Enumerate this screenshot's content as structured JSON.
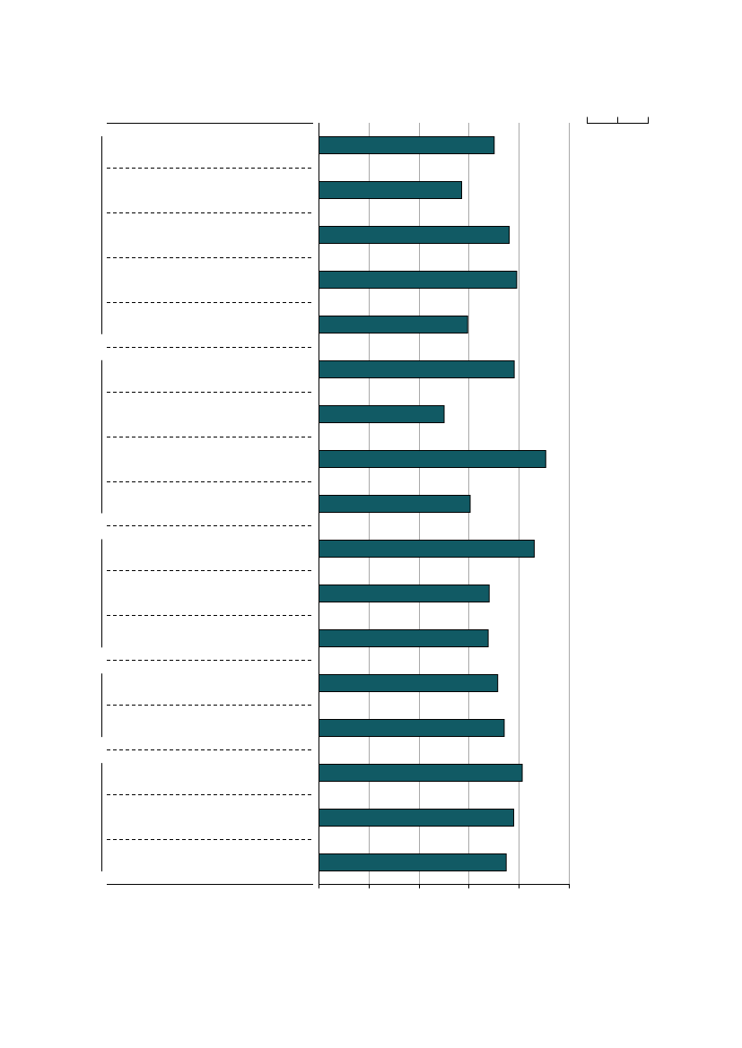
{
  "chart_data": {
    "type": "bar",
    "orientation": "horizontal",
    "title": "",
    "xlabel": "",
    "ylabel": "",
    "categories": [
      "",
      "",
      "",
      "",
      "",
      "",
      "",
      "",
      "",
      "",
      "",
      "",
      "",
      "",
      "",
      "",
      ""
    ],
    "values": [
      35,
      28.5,
      38,
      39.5,
      29.7,
      39,
      25,
      45.3,
      30.2,
      43,
      34,
      33.8,
      35.7,
      37,
      40.6,
      38.9,
      37.4
    ],
    "xlim": [
      0,
      50
    ],
    "x_tick_values": [
      0,
      10,
      20,
      30,
      40,
      50
    ],
    "grid": true,
    "legend": "none",
    "bar_color": "#115a64",
    "groups": [
      {
        "start": 0,
        "end": 4
      },
      {
        "start": 5,
        "end": 8
      },
      {
        "start": 9,
        "end": 11
      },
      {
        "start": 12,
        "end": 13
      },
      {
        "start": 14,
        "end": 16
      }
    ]
  },
  "colors": {
    "bar_fill": "#115a64",
    "gridline": "#a8a8a8",
    "axis": "#000000",
    "background": "#ffffff"
  }
}
